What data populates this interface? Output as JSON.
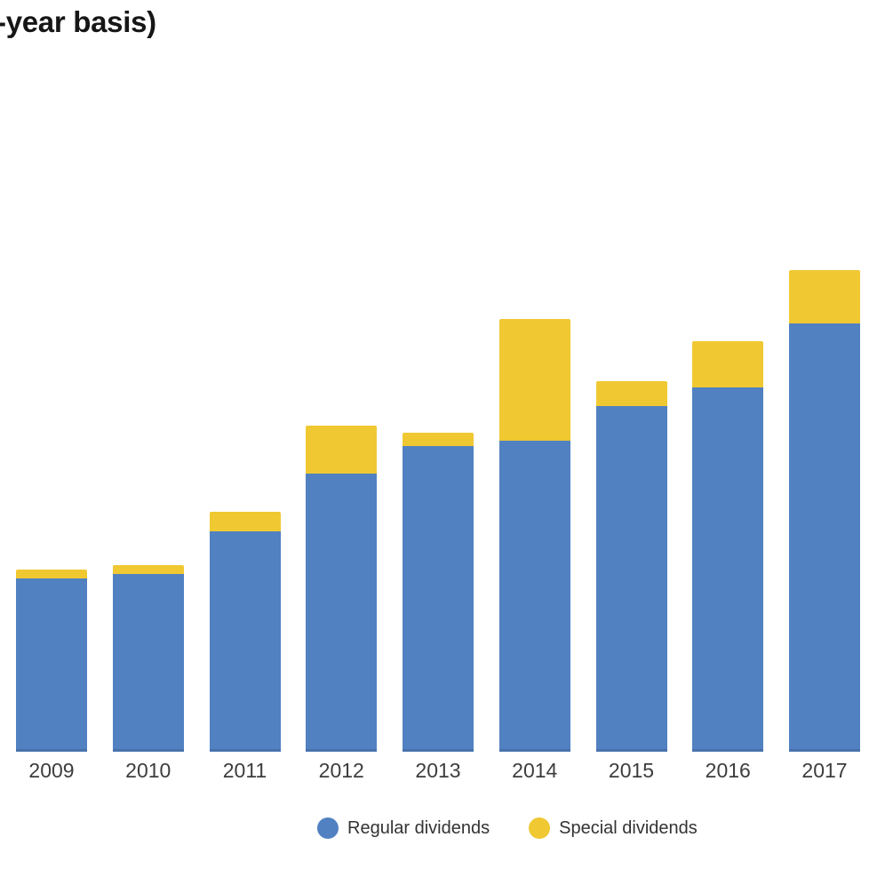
{
  "title": {
    "text": "-year basis)"
  },
  "colors": {
    "regular": "#5181C1",
    "special": "#F0C832",
    "title_text": "#161616",
    "axis_label_text": "#3D3D3D",
    "legend_text": "#333333",
    "background": "#FFFFFF"
  },
  "legend": {
    "items": [
      {
        "label": "Regular dividends",
        "color": "#5181C1"
      },
      {
        "label": "Special dividends",
        "color": "#F0C832"
      }
    ]
  },
  "chart_data": {
    "type": "bar",
    "stacked": true,
    "title": "-year basis)",
    "xlabel": "",
    "ylabel": "",
    "categories": [
      "2009",
      "2010",
      "2011",
      "2012",
      "2013",
      "2014",
      "2015",
      "2016",
      "2017"
    ],
    "series": [
      {
        "name": "Regular dividends",
        "color": "#5181C1",
        "values": [
          36.0,
          36.9,
          45.8,
          57.7,
          63.5,
          64.6,
          71.8,
          75.6,
          88.9
        ]
      },
      {
        "name": "Special dividends",
        "color": "#F0C832",
        "values": [
          1.8,
          1.8,
          4.1,
          10.0,
          2.8,
          25.3,
          5.2,
          9.6,
          11.1
        ]
      }
    ],
    "totals": [
      37.8,
      38.7,
      49.9,
      67.7,
      66.3,
      89.9,
      77.0,
      85.2,
      100.0
    ],
    "units": "relative height, scaled so 2017 total = 100 (no value axis shown in image)",
    "ylim": [
      0,
      100
    ],
    "grid": false,
    "axes_visible": false,
    "legend_position": "bottom-center"
  }
}
